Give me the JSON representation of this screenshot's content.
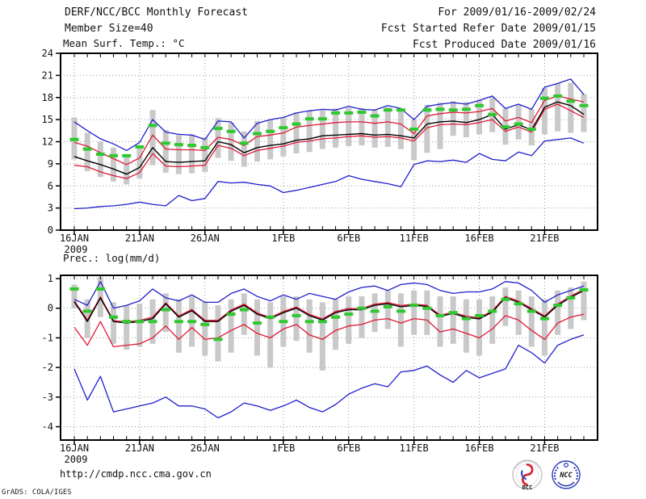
{
  "header": {
    "title": "DERF/NCC/BCC Monthly Forecast",
    "member_size": "Member Size=40",
    "period": "For 2009/01/16-2009/02/24",
    "refer_date": "Fcst Started Refer Date 2009/01/15",
    "produced_date": "Fcst Produced Date 2009/01/16"
  },
  "footer": {
    "url": "http://cmdp.ncc.cma.gov.cn",
    "credit": "GrADS: COLA/IGES",
    "logo_left": "BCC",
    "logo_right": "NCC"
  },
  "colors": {
    "frame": "#000000",
    "grid": "#999999",
    "bar": "#c9c9c9",
    "obs_green": "#30c830",
    "minmax_blue": "#2020cd",
    "quartile_red": "#e01836",
    "mean_black": "#000000"
  },
  "chart_data": [
    {
      "type": "line",
      "title": "Mean Surf. Temp.: °C",
      "x_tick_labels": [
        "16JAN",
        "21JAN",
        "26JAN",
        "1FEB",
        "6FEB",
        "11FEB",
        "16FEB",
        "21FEB"
      ],
      "x_tick_days": [
        0,
        5,
        10,
        16,
        21,
        26,
        31,
        36
      ],
      "x_sublabel": "2009",
      "n_days": 40,
      "ylim": [
        0,
        24
      ],
      "yticks": [
        0,
        3,
        6,
        9,
        12,
        15,
        18,
        21,
        24
      ],
      "grid": true,
      "legend": "none",
      "series": [
        {
          "name": "ensemble-max",
          "color_key": "minmax_blue",
          "values": [
            14.7,
            13.5,
            12.4,
            11.7,
            10.8,
            11.9,
            15.0,
            13.3,
            13.0,
            12.9,
            12.3,
            14.8,
            14.7,
            12.5,
            14.5,
            15.0,
            15.3,
            15.9,
            16.2,
            16.4,
            16.3,
            16.8,
            16.4,
            16.3,
            16.9,
            16.5,
            15.0,
            16.8,
            17.1,
            17.3,
            17.1,
            17.6,
            18.2,
            16.5,
            17.1,
            16.4,
            19.4,
            19.9,
            20.5,
            18.4
          ]
        },
        {
          "name": "upper-quartile",
          "color_key": "quartile_red",
          "values": [
            11.9,
            11.4,
            10.5,
            9.7,
            8.9,
            9.8,
            12.9,
            11.0,
            10.9,
            10.9,
            10.8,
            12.6,
            12.3,
            11.5,
            12.7,
            12.9,
            13.2,
            14.0,
            14.2,
            14.4,
            14.6,
            14.7,
            14.7,
            14.5,
            14.7,
            14.4,
            13.1,
            15.5,
            15.8,
            16.0,
            15.9,
            16.1,
            16.5,
            14.8,
            15.3,
            14.6,
            17.6,
            18.2,
            17.8,
            17.4
          ]
        },
        {
          "name": "lower-quartile",
          "color_key": "quartile_red",
          "values": [
            8.8,
            8.6,
            7.9,
            7.4,
            7.0,
            7.8,
            10.4,
            8.7,
            8.6,
            8.7,
            8.8,
            11.5,
            11.1,
            10.1,
            10.8,
            11.1,
            11.4,
            11.9,
            12.1,
            12.4,
            12.5,
            12.7,
            12.8,
            12.6,
            12.7,
            12.5,
            12.1,
            13.9,
            14.3,
            14.4,
            14.3,
            14.6,
            15.0,
            13.4,
            14.0,
            13.3,
            16.4,
            17.1,
            16.2,
            15.3
          ]
        },
        {
          "name": "ensemble-mean",
          "color_key": "mean_black",
          "values": [
            10.0,
            9.4,
            8.9,
            8.3,
            7.6,
            8.5,
            11.2,
            9.3,
            9.2,
            9.3,
            9.4,
            12.0,
            11.6,
            10.5,
            11.2,
            11.5,
            11.7,
            12.2,
            12.4,
            12.8,
            12.9,
            13.0,
            13.1,
            12.9,
            13.0,
            12.8,
            12.5,
            14.4,
            14.7,
            14.8,
            14.6,
            15.0,
            15.7,
            13.7,
            14.3,
            13.6,
            16.7,
            17.4,
            16.9,
            15.7
          ]
        },
        {
          "name": "ensemble-min",
          "color_key": "minmax_blue",
          "values": [
            2.9,
            3.0,
            3.2,
            3.3,
            3.5,
            3.8,
            3.5,
            3.3,
            4.7,
            4.0,
            4.3,
            6.6,
            6.4,
            6.5,
            6.2,
            6.0,
            5.1,
            5.4,
            5.8,
            6.2,
            6.6,
            7.4,
            6.9,
            6.6,
            6.3,
            5.9,
            8.9,
            9.4,
            9.3,
            9.5,
            9.2,
            10.4,
            9.6,
            9.4,
            10.6,
            10.1,
            12.1,
            12.3,
            12.5,
            11.8
          ]
        }
      ],
      "obs_dashes": {
        "name": "observation",
        "color_key": "obs_green",
        "values": [
          12.3,
          11.0,
          10.3,
          10.1,
          10.1,
          11.3,
          14.2,
          11.8,
          11.6,
          11.5,
          11.2,
          13.8,
          13.4,
          11.8,
          13.1,
          13.4,
          13.9,
          14.4,
          15.1,
          15.1,
          15.9,
          15.9,
          16.0,
          15.5,
          16.3,
          16.3,
          13.7,
          16.3,
          16.4,
          16.3,
          16.4,
          16.9,
          15.7,
          14.0,
          14.4,
          13.7,
          17.9,
          18.2,
          17.5,
          16.9
        ]
      },
      "spread_bars": {
        "name": "ensemble-spread",
        "color_key": "bar",
        "ranges": [
          [
            9.6,
            15.3
          ],
          [
            8.0,
            13.2
          ],
          [
            7.2,
            12.0
          ],
          [
            6.6,
            11.2
          ],
          [
            6.2,
            10.2
          ],
          [
            7.0,
            11.4
          ],
          [
            8.8,
            16.3
          ],
          [
            7.8,
            13.6
          ],
          [
            7.6,
            12.9
          ],
          [
            7.7,
            13.0
          ],
          [
            7.9,
            12.6
          ],
          [
            9.8,
            15.2
          ],
          [
            9.4,
            14.6
          ],
          [
            8.6,
            13.4
          ],
          [
            9.3,
            14.8
          ],
          [
            9.6,
            15.0
          ],
          [
            10.0,
            15.3
          ],
          [
            10.4,
            16.0
          ],
          [
            10.6,
            16.2
          ],
          [
            11.0,
            16.3
          ],
          [
            11.2,
            16.5
          ],
          [
            11.4,
            16.6
          ],
          [
            11.5,
            16.6
          ],
          [
            11.2,
            16.4
          ],
          [
            11.3,
            16.7
          ],
          [
            11.0,
            16.4
          ],
          [
            9.5,
            15.0
          ],
          [
            10.5,
            17.0
          ],
          [
            11.0,
            17.3
          ],
          [
            12.8,
            17.5
          ],
          [
            12.6,
            17.4
          ],
          [
            13.0,
            17.7
          ],
          [
            13.3,
            18.1
          ],
          [
            11.6,
            16.5
          ],
          [
            12.3,
            17.0
          ],
          [
            11.5,
            16.4
          ],
          [
            13.0,
            19.3
          ],
          [
            13.4,
            19.9
          ],
          [
            13.2,
            20.0
          ],
          [
            13.3,
            18.5
          ]
        ]
      }
    },
    {
      "type": "line",
      "title": "Prec.: log(mm/d)",
      "x_tick_labels": [
        "16JAN",
        "21JAN",
        "26JAN",
        "1FEB",
        "6FEB",
        "11FEB",
        "16FEB",
        "21FEB"
      ],
      "x_tick_days": [
        0,
        5,
        10,
        16,
        21,
        26,
        31,
        36
      ],
      "x_sublabel": "2009",
      "n_days": 40,
      "ylim": [
        -4.45,
        1.11
      ],
      "yticks": [
        1,
        0,
        -1,
        -2,
        -3,
        -4
      ],
      "grid": true,
      "legend": "none",
      "series": [
        {
          "name": "ensemble-max",
          "color_key": "minmax_blue",
          "values": [
            0.3,
            0.1,
            0.9,
            0.0,
            0.1,
            0.25,
            0.65,
            0.35,
            0.25,
            0.45,
            0.2,
            0.2,
            0.5,
            0.65,
            0.4,
            0.25,
            0.45,
            0.3,
            0.5,
            0.4,
            0.3,
            0.55,
            0.7,
            0.75,
            0.6,
            0.8,
            0.85,
            0.8,
            0.6,
            0.5,
            0.55,
            0.55,
            0.65,
            0.9,
            0.85,
            0.6,
            0.2,
            0.45,
            0.6,
            0.75
          ]
        },
        {
          "name": "upper-quartile",
          "color_key": "quartile_red",
          "values": [
            0.25,
            -0.4,
            0.38,
            -0.42,
            -0.46,
            -0.41,
            -0.3,
            0.18,
            -0.26,
            -0.04,
            -0.41,
            -0.41,
            -0.06,
            0.14,
            -0.16,
            -0.31,
            -0.11,
            0.04,
            -0.21,
            -0.36,
            -0.11,
            -0.01,
            -0.01,
            0.14,
            0.19,
            0.09,
            0.14,
            0.1,
            -0.23,
            -0.14,
            -0.27,
            -0.32,
            -0.09,
            0.4,
            0.24,
            -0.01,
            -0.26,
            0.14,
            0.41,
            0.64
          ]
        },
        {
          "name": "lower-quartile",
          "color_key": "quartile_red",
          "values": [
            -0.64,
            -1.25,
            -0.45,
            -1.3,
            -1.25,
            -1.2,
            -1.0,
            -0.6,
            -1.05,
            -0.65,
            -1.05,
            -1.0,
            -0.75,
            -0.55,
            -0.85,
            -1.0,
            -0.7,
            -0.55,
            -0.9,
            -1.05,
            -0.75,
            -0.6,
            -0.55,
            -0.4,
            -0.35,
            -0.5,
            -0.35,
            -0.4,
            -0.8,
            -0.7,
            -0.85,
            -1.0,
            -0.7,
            -0.25,
            -0.4,
            -0.75,
            -1.05,
            -0.5,
            -0.3,
            -0.2
          ]
        },
        {
          "name": "ensemble-mean",
          "color_key": "mean_black",
          "values": [
            0.22,
            -0.45,
            0.35,
            -0.45,
            -0.5,
            -0.45,
            -0.35,
            0.15,
            -0.3,
            -0.08,
            -0.45,
            -0.45,
            -0.1,
            0.1,
            -0.2,
            -0.35,
            -0.15,
            0.0,
            -0.25,
            -0.4,
            -0.15,
            -0.05,
            -0.05,
            0.1,
            0.15,
            0.05,
            0.1,
            0.06,
            -0.27,
            -0.18,
            -0.31,
            -0.36,
            -0.13,
            0.36,
            0.2,
            -0.05,
            -0.3,
            0.1,
            0.37,
            0.6
          ]
        },
        {
          "name": "ensemble-min",
          "color_key": "minmax_blue",
          "values": [
            -2.05,
            -3.1,
            -2.3,
            -3.5,
            -3.4,
            -3.3,
            -3.2,
            -3.0,
            -3.3,
            -3.3,
            -3.4,
            -3.7,
            -3.5,
            -3.2,
            -3.3,
            -3.45,
            -3.3,
            -3.1,
            -3.35,
            -3.5,
            -3.25,
            -2.9,
            -2.7,
            -2.55,
            -2.65,
            -2.15,
            -2.1,
            -1.95,
            -2.25,
            -2.5,
            -2.1,
            -2.35,
            -2.2,
            -2.05,
            -1.25,
            -1.5,
            -1.85,
            -1.25,
            -1.05,
            -0.9
          ]
        }
      ],
      "obs_dashes": {
        "name": "observation",
        "color_key": "obs_green",
        "values": [
          0.65,
          -0.1,
          0.65,
          -0.3,
          -0.45,
          -0.45,
          -0.45,
          -0.05,
          -0.45,
          -0.45,
          -0.55,
          -1.05,
          -0.2,
          -0.05,
          -0.5,
          -0.3,
          -0.45,
          -0.25,
          -0.45,
          -0.45,
          -0.3,
          -0.2,
          0.0,
          -0.1,
          0.05,
          -0.1,
          0.1,
          0.0,
          -0.25,
          -0.15,
          -0.35,
          -0.25,
          -0.1,
          0.3,
          0.15,
          -0.1,
          -0.35,
          0.1,
          0.35,
          0.62
        ]
      },
      "spread_bars": {
        "name": "ensemble-spread",
        "color_key": "bar",
        "ranges": [
          [
            0.0,
            0.8
          ],
          [
            -1.0,
            0.3
          ],
          [
            -0.3,
            1.05
          ],
          [
            -1.2,
            0.2
          ],
          [
            -1.4,
            0.1
          ],
          [
            -1.3,
            0.15
          ],
          [
            -1.2,
            0.3
          ],
          [
            -0.8,
            0.5
          ],
          [
            -1.5,
            0.3
          ],
          [
            -1.3,
            0.4
          ],
          [
            -1.6,
            0.2
          ],
          [
            -1.8,
            0.1
          ],
          [
            -1.5,
            0.3
          ],
          [
            -0.9,
            0.5
          ],
          [
            -1.6,
            0.3
          ],
          [
            -2.0,
            0.2
          ],
          [
            -1.3,
            0.4
          ],
          [
            -1.1,
            0.4
          ],
          [
            -1.5,
            0.3
          ],
          [
            -2.1,
            0.2
          ],
          [
            -1.4,
            0.3
          ],
          [
            -1.2,
            0.4
          ],
          [
            -1.0,
            0.4
          ],
          [
            -0.8,
            0.5
          ],
          [
            -0.7,
            0.6
          ],
          [
            -1.3,
            0.5
          ],
          [
            -0.9,
            0.6
          ],
          [
            -0.9,
            0.6
          ],
          [
            -1.3,
            0.4
          ],
          [
            -1.2,
            0.4
          ],
          [
            -1.5,
            0.3
          ],
          [
            -1.6,
            0.3
          ],
          [
            -1.2,
            0.4
          ],
          [
            -0.6,
            0.7
          ],
          [
            -0.9,
            0.6
          ],
          [
            -1.3,
            0.4
          ],
          [
            -1.6,
            0.3
          ],
          [
            -0.9,
            0.6
          ],
          [
            -0.7,
            0.7
          ],
          [
            -0.4,
            0.9
          ]
        ]
      }
    }
  ]
}
